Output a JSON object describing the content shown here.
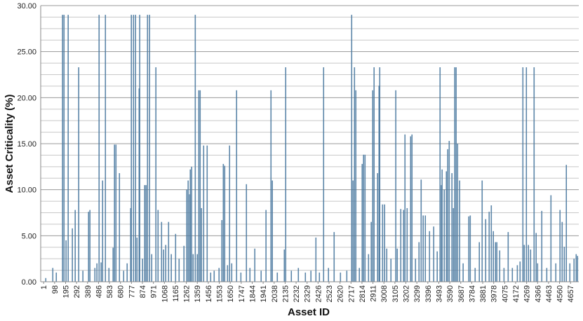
{
  "chart_data": {
    "type": "bar",
    "x_label": "Asset ID",
    "y_label": "Asset Criticality (%)",
    "color": "#4a79a0",
    "grid": true,
    "xlim": [
      -25,
      4730
    ],
    "ylim": [
      0,
      30
    ],
    "xticks": [
      1,
      98,
      195,
      292,
      389,
      486,
      583,
      680,
      777,
      874,
      971,
      1068,
      1165,
      1262,
      1359,
      1456,
      1553,
      1650,
      1747,
      1844,
      1941,
      2038,
      2135,
      2232,
      2329,
      2426,
      2523,
      2620,
      2717,
      2814,
      2911,
      3008,
      3105,
      3202,
      3299,
      3396,
      3493,
      3590,
      3687,
      3784,
      3881,
      3978,
      4075,
      4172,
      4269,
      4366,
      4463,
      4560,
      4657
    ],
    "yticks": [
      {
        "value": 0,
        "label": "0.00"
      },
      {
        "value": 5,
        "label": "5.00"
      },
      {
        "value": 10,
        "label": "10.00"
      },
      {
        "value": 15,
        "label": "15.00"
      },
      {
        "value": 20,
        "label": "20.00"
      },
      {
        "value": 25,
        "label": "25.00"
      },
      {
        "value": 30,
        "label": "30.00"
      }
    ],
    "minor_yticks": [
      1.25,
      2.5,
      3.75,
      6.25,
      7.5,
      8.75,
      11.25,
      12.5,
      13.75,
      16.25,
      17.5,
      18.75,
      21.25,
      22.5,
      23.75,
      26.25,
      27.5,
      28.75
    ],
    "x": [
      20,
      82,
      113,
      168,
      181,
      199,
      218,
      255,
      280,
      311,
      348,
      398,
      410,
      454,
      472,
      491,
      509,
      522,
      547,
      578,
      615,
      627,
      640,
      671,
      708,
      739,
      770,
      776,
      795,
      813,
      826,
      845,
      850,
      875,
      894,
      906,
      919,
      937,
      956,
      993,
      1012,
      1043,
      1061,
      1080,
      1105,
      1129,
      1167,
      1198,
      1241,
      1266,
      1278,
      1291,
      1297,
      1309,
      1322,
      1341,
      1359,
      1372,
      1384,
      1396,
      1415,
      1446,
      1477,
      1508,
      1551,
      1576,
      1589,
      1601,
      1626,
      1644,
      1663,
      1706,
      1744,
      1793,
      1824,
      1867,
      1923,
      1966,
      2010,
      2022,
      2066,
      2128,
      2140,
      2190,
      2252,
      2314,
      2363,
      2407,
      2438,
      2475,
      2518,
      2568,
      2624,
      2680,
      2723,
      2735,
      2748,
      2760,
      2791,
      2816,
      2828,
      2841,
      2872,
      2896,
      2909,
      2921,
      2952,
      2965,
      2971,
      2996,
      3014,
      3033,
      3070,
      3113,
      3126,
      3157,
      3182,
      3194,
      3213,
      3244,
      3256,
      3287,
      3318,
      3337,
      3355,
      3374,
      3411,
      3448,
      3479,
      3504,
      3516,
      3522,
      3541,
      3560,
      3572,
      3585,
      3609,
      3622,
      3634,
      3646,
      3659,
      3677,
      3708,
      3758,
      3771,
      3814,
      3851,
      3876,
      3907,
      3938,
      3957,
      3975,
      3994,
      4006,
      4031,
      4069,
      4106,
      4143,
      4187,
      4211,
      4236,
      4248,
      4267,
      4285,
      4304,
      4335,
      4353,
      4366,
      4403,
      4447,
      4484,
      4527,
      4564,
      4583,
      4602,
      4620,
      4651,
      4688,
      4707,
      4719
    ],
    "values": [
      0.4,
      1.5,
      1.0,
      29,
      29,
      4.5,
      29,
      5.8,
      7.8,
      23.3,
      1.2,
      7.6,
      7.8,
      1.5,
      2,
      29,
      2.1,
      11,
      29,
      1.5,
      3.7,
      14.9,
      14.9,
      11.8,
      1.2,
      2,
      8,
      29,
      29,
      29,
      4.8,
      21,
      29,
      2.5,
      10.5,
      10.5,
      29,
      29,
      3,
      23.3,
      7.8,
      6.5,
      3.5,
      4,
      6.5,
      3,
      5.2,
      2.5,
      3.9,
      10,
      11,
      9.5,
      12.2,
      12.5,
      3,
      29,
      3,
      20.8,
      20.8,
      8,
      14.8,
      14.8,
      1,
      1.2,
      1.5,
      6.7,
      12.8,
      12.6,
      1.8,
      14.8,
      2,
      20.8,
      1,
      10.6,
      1.5,
      3.6,
      1.2,
      7.8,
      20.8,
      11,
      1,
      3.5,
      23.3,
      1.2,
      1.5,
      1.0,
      1.2,
      4.8,
      1,
      23.3,
      1.5,
      5.4,
      1,
      1.2,
      29,
      11,
      23.3,
      20.8,
      1.5,
      12.8,
      13.8,
      13.8,
      3,
      6.5,
      20.8,
      23.3,
      11.8,
      21.3,
      23.3,
      8.4,
      8.4,
      3.6,
      2.5,
      20.8,
      3.6,
      7.9,
      7.8,
      16,
      8,
      15.8,
      16,
      2.5,
      4.3,
      11.1,
      7.2,
      7.2,
      5.5,
      6,
      3.3,
      23.3,
      10.5,
      12.2,
      10,
      12,
      14.4,
      15.3,
      11.8,
      8,
      23.3,
      23.3,
      15,
      11,
      2,
      7.1,
      7.2,
      1.5,
      4.3,
      11,
      6.8,
      7.6,
      8.3,
      5.5,
      4.3,
      4.3,
      3.4,
      1.5,
      5.4,
      1.5,
      1.8,
      2.2,
      23.3,
      4,
      23.3,
      4,
      3.5,
      23.3,
      5.3,
      2,
      7.7,
      1.5,
      9.4,
      2,
      7.8,
      6.5,
      3.8,
      12.7,
      2,
      2.5,
      3,
      2.8
    ]
  }
}
